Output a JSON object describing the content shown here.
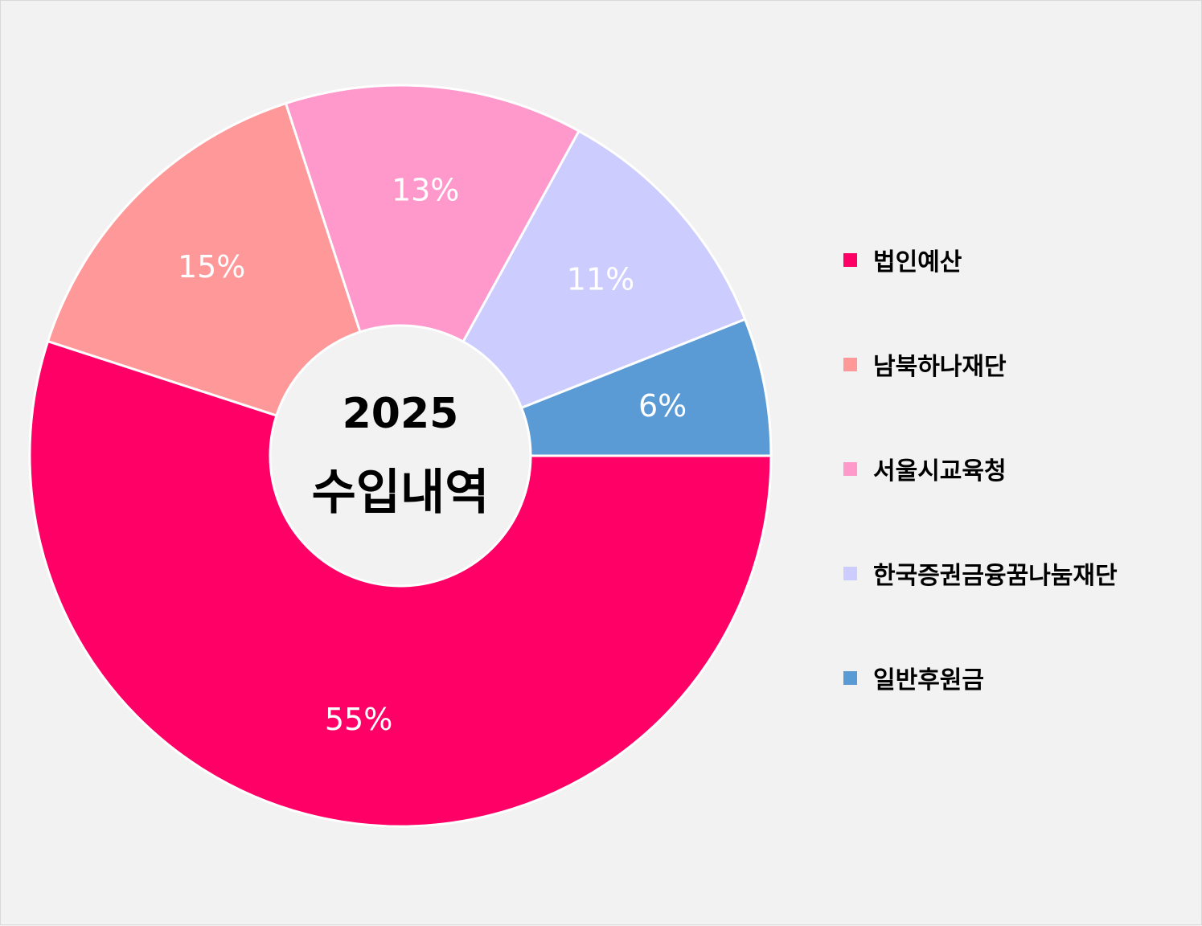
{
  "chart_data": {
    "type": "pie",
    "title": "2025 수입내역",
    "center_text": {
      "year": "2025",
      "title": "수입내역"
    },
    "slices": [
      {
        "name": "법인예산",
        "value": 55,
        "label": "55%",
        "color": "#ff0066"
      },
      {
        "name": "남북하나재단",
        "value": 15,
        "label": "15%",
        "color": "#ff9999"
      },
      {
        "name": "서울시교육청",
        "value": 13,
        "label": "13%",
        "color": "#ff99cc"
      },
      {
        "name": "한국증권금융꿈나눔재단",
        "value": 11,
        "label": "11%",
        "color": "#ccccff"
      },
      {
        "name": "일반후원금",
        "value": 6,
        "label": "6%",
        "color": "#5b9bd5"
      }
    ],
    "legend_position": "right",
    "donut": true
  },
  "background_color": "#f2f2f2"
}
